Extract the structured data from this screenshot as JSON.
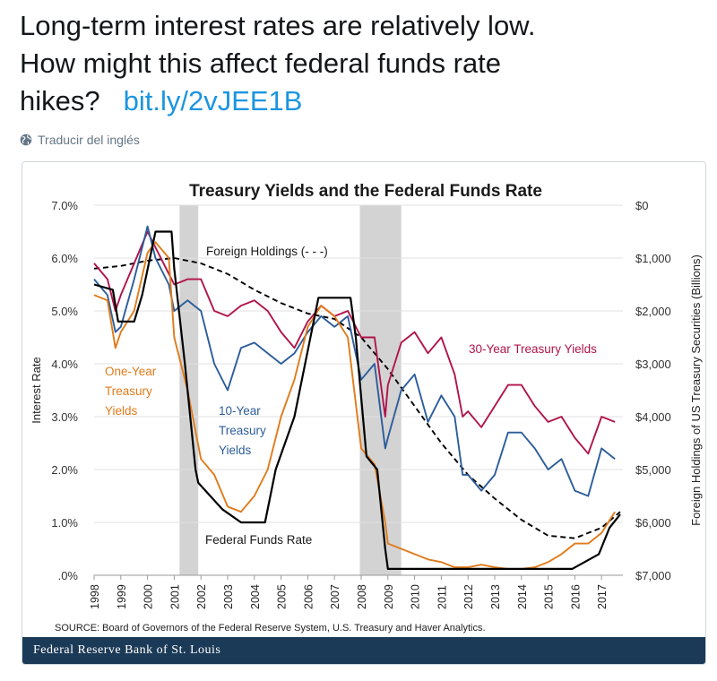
{
  "tweet": {
    "line1": "Long-term interest rates are relatively low.",
    "line2": "How might this affect federal funds rate",
    "line3": "hikes?",
    "link": "bit.ly/2vJEE1B",
    "translate_label": "Traducir del inglés",
    "globe_icon": "globe-icon"
  },
  "chart_data": {
    "type": "line",
    "title": "Treasury Yields and the Federal Funds Rate",
    "ylabel": "Interest Rate",
    "y2label": "Foreign Holdings of US Treasury Securities (Billions)",
    "ylim": [
      0,
      7
    ],
    "y2lim": [
      0,
      7000
    ],
    "y2_inverted": true,
    "yticks": [
      ".0%",
      "1.0%",
      "2.0%",
      "3.0%",
      "4.0%",
      "5.0%",
      "6.0%",
      "7.0%"
    ],
    "y2ticks": [
      "$0",
      "$1,000",
      "$2,000",
      "$3,000",
      "$4,000",
      "$5,000",
      "$6,000",
      "$7,000"
    ],
    "xticks": [
      "1998",
      "1999",
      "2000",
      "2001",
      "2002",
      "2003",
      "2004",
      "2005",
      "2006",
      "2007",
      "2008",
      "2009",
      "2010",
      "2011",
      "2012",
      "2013",
      "2014",
      "2015",
      "2016",
      "2017"
    ],
    "xlim": [
      1998,
      2017.8
    ],
    "recessions": [
      [
        2001.2,
        2001.9
      ],
      [
        2007.95,
        2009.5
      ]
    ],
    "series": [
      {
        "name": "30-Year Treasury Yields",
        "color": "#b0144a",
        "dash": false,
        "axis": "left",
        "x": [
          1998,
          1998.5,
          1998.8,
          1999,
          1999.5,
          2000,
          2000.3,
          2000.8,
          2001,
          2001.5,
          2002,
          2002.5,
          2003,
          2003.5,
          2004,
          2004.5,
          2005,
          2005.5,
          2006,
          2006.5,
          2007,
          2007.5,
          2008,
          2008.5,
          2008.9,
          2009,
          2009.5,
          2010,
          2010.5,
          2011,
          2011.5,
          2011.8,
          2012,
          2012.5,
          2013,
          2013.5,
          2014,
          2014.5,
          2015,
          2015.5,
          2016,
          2016.5,
          2017,
          2017.5
        ],
        "y": [
          5.9,
          5.6,
          5.0,
          5.3,
          5.9,
          6.5,
          6.2,
          5.7,
          5.5,
          5.6,
          5.6,
          5.0,
          4.9,
          5.1,
          5.2,
          5.0,
          4.6,
          4.3,
          4.8,
          5.1,
          4.9,
          5.0,
          4.5,
          4.5,
          3.0,
          3.6,
          4.4,
          4.6,
          4.2,
          4.5,
          3.8,
          3.0,
          3.1,
          2.8,
          3.2,
          3.6,
          3.6,
          3.2,
          2.9,
          3.0,
          2.6,
          2.3,
          3.0,
          2.9
        ]
      },
      {
        "name": "10-Year Treasury Yields",
        "color": "#2c5d9a",
        "dash": false,
        "axis": "left",
        "x": [
          1998,
          1998.5,
          1998.8,
          1999,
          1999.5,
          2000,
          2000.3,
          2000.8,
          2001,
          2001.5,
          2002,
          2002.5,
          2003,
          2003.5,
          2004,
          2004.5,
          2005,
          2005.5,
          2006,
          2006.5,
          2007,
          2007.5,
          2008,
          2008.5,
          2008.9,
          2009,
          2009.5,
          2010,
          2010.5,
          2011,
          2011.5,
          2011.8,
          2012,
          2012.5,
          2013,
          2013.5,
          2014,
          2014.5,
          2015,
          2015.5,
          2016,
          2016.5,
          2017,
          2017.5
        ],
        "y": [
          5.6,
          5.3,
          4.6,
          4.7,
          5.6,
          6.6,
          6.0,
          5.5,
          5.0,
          5.2,
          5.0,
          4.0,
          3.5,
          4.3,
          4.4,
          4.2,
          4.0,
          4.2,
          4.6,
          4.9,
          4.7,
          4.9,
          3.7,
          4.0,
          2.4,
          2.6,
          3.5,
          3.8,
          2.9,
          3.4,
          3.0,
          1.9,
          1.9,
          1.6,
          1.9,
          2.7,
          2.7,
          2.4,
          2.0,
          2.2,
          1.6,
          1.5,
          2.4,
          2.2
        ]
      },
      {
        "name": "One-Year Treasury Yields",
        "color": "#e07b1a",
        "dash": false,
        "axis": "left",
        "x": [
          1998,
          1998.5,
          1998.8,
          1999,
          1999.5,
          2000,
          2000.3,
          2000.8,
          2001,
          2001.5,
          2002,
          2002.5,
          2003,
          2003.5,
          2004,
          2004.5,
          2005,
          2005.5,
          2006,
          2006.5,
          2007,
          2007.5,
          2008,
          2008.5,
          2008.9,
          2009,
          2009.5,
          2010,
          2010.5,
          2011,
          2011.5,
          2012,
          2012.5,
          2013,
          2013.5,
          2014,
          2014.5,
          2015,
          2015.5,
          2016,
          2016.5,
          2017,
          2017.5
        ],
        "y": [
          5.3,
          5.2,
          4.3,
          4.6,
          5.0,
          6.1,
          6.3,
          6.0,
          4.5,
          3.5,
          2.2,
          1.9,
          1.3,
          1.2,
          1.5,
          2.0,
          3.0,
          3.7,
          4.7,
          5.1,
          4.9,
          4.5,
          2.4,
          2.1,
          1.0,
          0.6,
          0.5,
          0.4,
          0.3,
          0.25,
          0.15,
          0.15,
          0.2,
          0.15,
          0.12,
          0.12,
          0.15,
          0.25,
          0.4,
          0.6,
          0.6,
          0.8,
          1.2
        ]
      },
      {
        "name": "Federal Funds Rate",
        "color": "#000000",
        "dash": false,
        "axis": "left",
        "x": [
          1998,
          1998.7,
          1998.9,
          1999.5,
          1999.8,
          2000.3,
          2000.5,
          2000.9,
          2001,
          2001.4,
          2001.8,
          2001.9,
          2002.8,
          2003.5,
          2004.4,
          2004.8,
          2005.5,
          2006.4,
          2007.6,
          2007.8,
          2008.2,
          2008.6,
          2008.9,
          2009,
          2015.9,
          2016.9,
          2017.3,
          2017.7
        ],
        "y": [
          5.5,
          5.4,
          4.8,
          4.8,
          5.3,
          6.5,
          6.5,
          6.5,
          5.8,
          4.0,
          2.0,
          1.75,
          1.25,
          1.0,
          1.0,
          2.0,
          3.0,
          5.25,
          5.25,
          4.5,
          2.25,
          2.0,
          0.5,
          0.12,
          0.12,
          0.4,
          0.9,
          1.15
        ]
      },
      {
        "name": "Foreign Holdings (- - -)",
        "color": "#000000",
        "dash": true,
        "axis": "right",
        "x": [
          1998,
          1999,
          2000,
          2001,
          2002,
          2003,
          2004,
          2005,
          2006,
          2007,
          2008,
          2009,
          2010,
          2011,
          2012,
          2013,
          2014,
          2015,
          2016,
          2017,
          2017.7
        ],
        "y": [
          1200,
          1150,
          1050,
          1000,
          1100,
          1300,
          1600,
          1850,
          2050,
          2150,
          2500,
          3100,
          3800,
          4500,
          5100,
          5550,
          5950,
          6250,
          6300,
          6100,
          5800
        ]
      }
    ],
    "annotations": [
      "Foreign Holdings (- - -)",
      "30-Year Treasury Yields",
      "One-Year Treasury Yields",
      "10-Year Treasury Yields",
      "Federal Funds Rate"
    ],
    "source": "SOURCE: Board of Governors of the Federal Reserve System, U.S. Treasury and Haver Analytics.",
    "brand": "Federal Reserve Bank of St. Louis"
  }
}
